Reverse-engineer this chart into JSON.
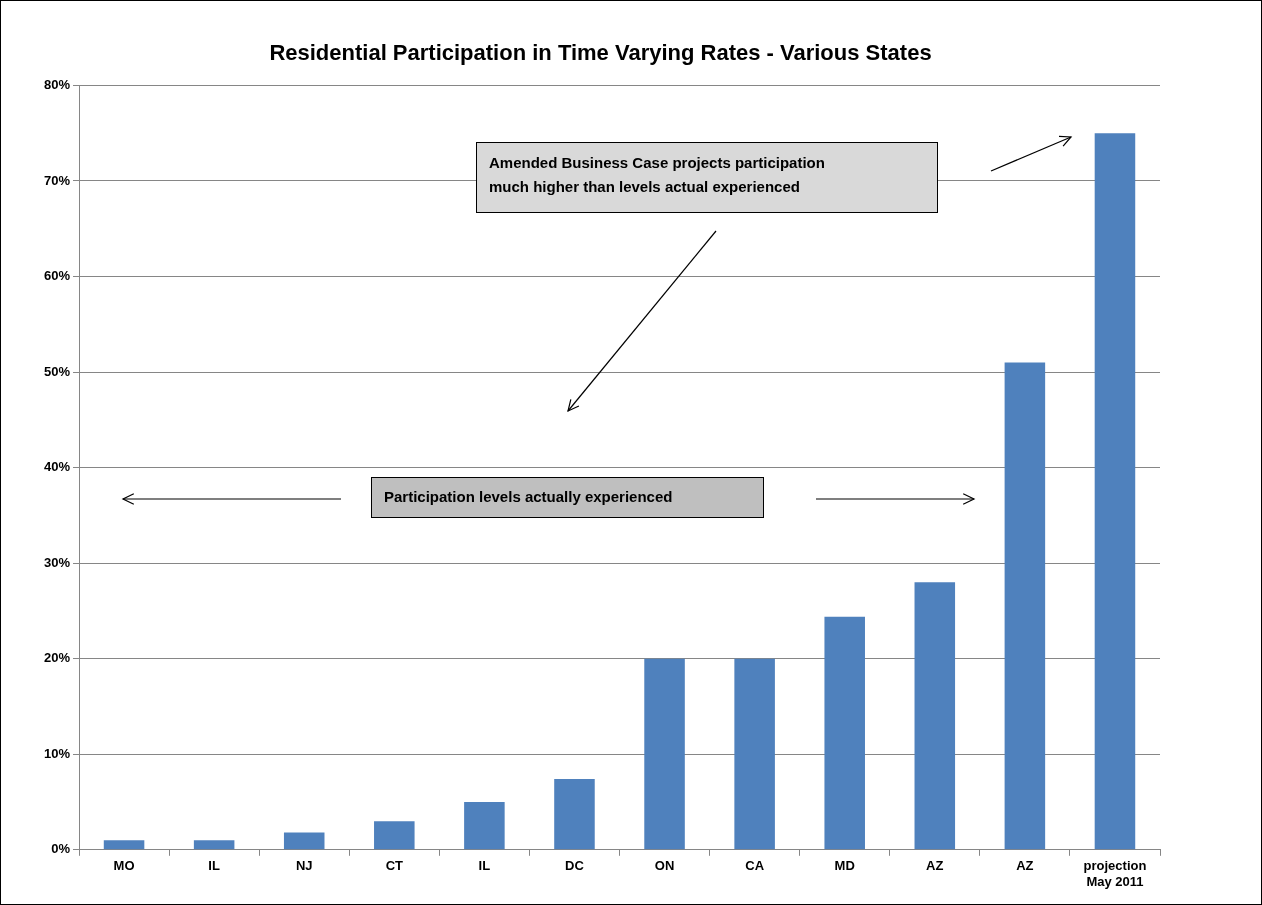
{
  "chart_data": {
    "type": "bar",
    "title": "Residential Participation in Time Varying Rates - Various States",
    "categories": [
      "MO",
      "IL",
      "NJ",
      "CT",
      "IL",
      "DC",
      "ON",
      "CA",
      "MD",
      "AZ",
      "AZ",
      "projection May 2011"
    ],
    "values": [
      1,
      1,
      1.8,
      3,
      5,
      7.4,
      20,
      20,
      24.4,
      28,
      51,
      75
    ],
    "color": "#4f81bd",
    "ylim": [
      0,
      80
    ],
    "yticks": [
      {
        "value": 0,
        "label": "0%"
      },
      {
        "value": 10,
        "label": "10%"
      },
      {
        "value": 20,
        "label": "20%"
      },
      {
        "value": 30,
        "label": "30%"
      },
      {
        "value": 40,
        "label": "40%"
      },
      {
        "value": 50,
        "label": "50%"
      },
      {
        "value": 60,
        "label": "60%"
      },
      {
        "value": 70,
        "label": "70%"
      },
      {
        "value": 80,
        "label": "80%"
      }
    ],
    "grid": "y",
    "annotations": [
      "Amended Business Case  projects participation much higher than levels actual experienced",
      "Participation levels actually experienced"
    ]
  }
}
